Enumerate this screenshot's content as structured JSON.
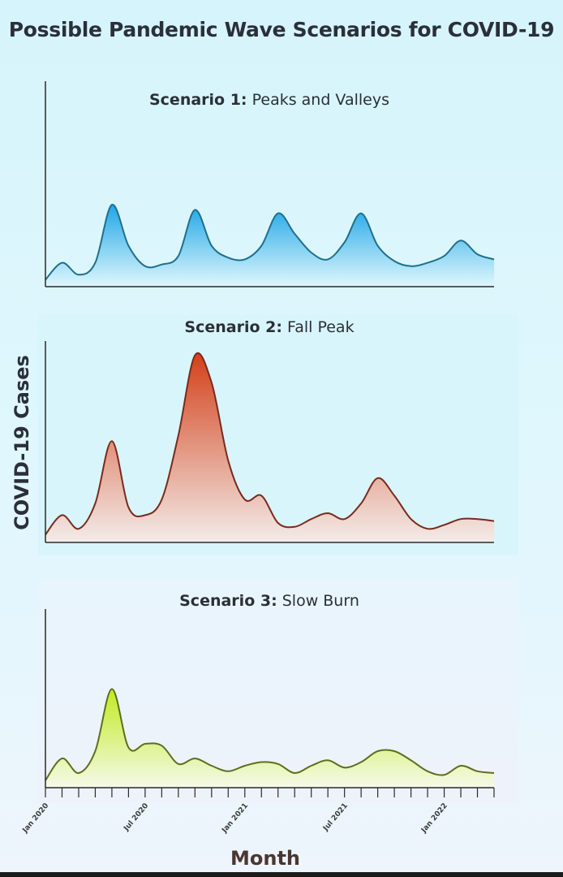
{
  "title": "Possible Pandemic Wave Scenarios for COVID-19",
  "ylabel": "COVID-19 Cases",
  "xlabel": "Month",
  "chart_data": [
    {
      "type": "area",
      "title_prefix": "Scenario 1:",
      "title_name": "Peaks and Valleys",
      "color": "#2aaee8",
      "ylim": [
        0,
        100
      ],
      "x": [
        "2020-01",
        "2020-02",
        "2020-03",
        "2020-04",
        "2020-05",
        "2020-06",
        "2020-07",
        "2020-08",
        "2020-09",
        "2020-10",
        "2020-11",
        "2020-12",
        "2021-01",
        "2021-02",
        "2021-03",
        "2021-04",
        "2021-05",
        "2021-06",
        "2021-07",
        "2021-08",
        "2021-09",
        "2021-10",
        "2021-11",
        "2021-12",
        "2022-01",
        "2022-02",
        "2022-03",
        "2022-04"
      ],
      "y": [
        4,
        14,
        7,
        14,
        48,
        24,
        12,
        13,
        18,
        45,
        24,
        17,
        16,
        24,
        43,
        31,
        20,
        16,
        26,
        43,
        24,
        15,
        12,
        14,
        18,
        27,
        19,
        16
      ]
    },
    {
      "type": "area",
      "title_prefix": "Scenario 2:",
      "title_name": "Fall Peak",
      "color": "#d4471e",
      "ylim": [
        0,
        100
      ],
      "x": [
        "2020-01",
        "2020-02",
        "2020-03",
        "2020-04",
        "2020-05",
        "2020-06",
        "2020-07",
        "2020-08",
        "2020-09",
        "2020-10",
        "2020-11",
        "2020-12",
        "2021-01",
        "2021-02",
        "2021-03",
        "2021-04",
        "2021-05",
        "2021-06",
        "2021-07",
        "2021-08",
        "2021-09",
        "2021-10",
        "2021-11",
        "2021-12",
        "2022-01",
        "2022-02",
        "2022-03",
        "2022-04"
      ],
      "y": [
        4,
        14,
        7,
        20,
        52,
        18,
        14,
        22,
        55,
        96,
        82,
        42,
        22,
        24,
        10,
        8,
        12,
        15,
        12,
        20,
        33,
        24,
        12,
        7,
        9,
        12,
        12,
        11
      ]
    },
    {
      "type": "area",
      "title_prefix": "Scenario 3:",
      "title_name": "Slow Burn",
      "color": "#c8e828",
      "ylim": [
        0,
        100
      ],
      "x": [
        "2020-01",
        "2020-02",
        "2020-03",
        "2020-04",
        "2020-05",
        "2020-06",
        "2020-07",
        "2020-08",
        "2020-09",
        "2020-10",
        "2020-11",
        "2020-12",
        "2021-01",
        "2021-02",
        "2021-03",
        "2021-04",
        "2021-05",
        "2021-06",
        "2021-07",
        "2021-08",
        "2021-09",
        "2021-10",
        "2021-11",
        "2021-12",
        "2022-01",
        "2022-02",
        "2022-03",
        "2022-04"
      ],
      "y": [
        4,
        16,
        8,
        20,
        54,
        22,
        24,
        23,
        13,
        16,
        12,
        9,
        12,
        14,
        13,
        8,
        12,
        15,
        11,
        14,
        20,
        20,
        15,
        9,
        7,
        12,
        9,
        8
      ],
      "xtick_labels": [
        "Jan 2020",
        "Jul 2020",
        "Jan 2021",
        "Jul 2021",
        "Jan 2022"
      ]
    }
  ]
}
